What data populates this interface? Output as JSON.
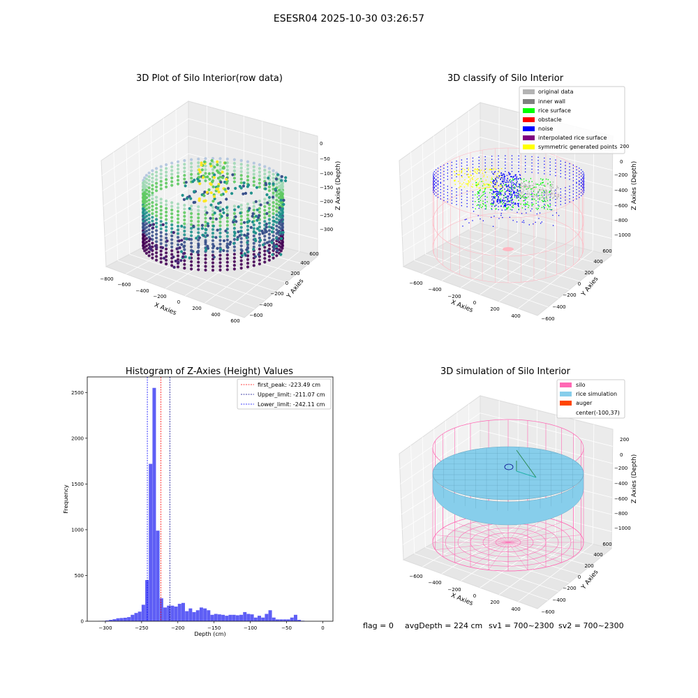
{
  "suptitle": "ESESR04 2025-10-30 03:26:57",
  "status_line": {
    "flag": "flag = 0",
    "avg_depth": "avgDepth = 224 cm",
    "sv1": "sv1 = 700~2300",
    "sv2": "sv2 = 700~2300"
  },
  "chart_data": [
    {
      "type": "scatter",
      "projection": "3d",
      "title": "3D Plot of Silo Interior(row data)",
      "xlabel": "X Axies",
      "ylabel": "Y Axies",
      "zlabel": "Z Axies (Depth)",
      "x_ticks": [
        "−800",
        "−600",
        "−400",
        "−200",
        "0",
        "200",
        "400",
        "600"
      ],
      "y_ticks": [
        "−600",
        "−400",
        "−200",
        "0",
        "200",
        "400",
        "600"
      ],
      "z_ticks": [
        "0",
        "−50",
        "−100",
        "−150",
        "−200",
        "−250",
        "−300"
      ],
      "colormap": "viridis",
      "zlim": [
        -330,
        10
      ],
      "grid": true
    },
    {
      "type": "scatter",
      "projection": "3d",
      "title": "3D classify of Silo Interior",
      "xlabel": "X Axies",
      "ylabel": "Y Axies",
      "zlabel": "Z Axies (Depth)",
      "x_ticks": [
        "−600",
        "−400",
        "−200",
        "0",
        "200",
        "400"
      ],
      "y_ticks": [
        "−600",
        "−400",
        "−200",
        "0",
        "200",
        "400",
        "600"
      ],
      "z_ticks": [
        "200",
        "0",
        "−200",
        "−400",
        "−600",
        "−800",
        "−1000"
      ],
      "legend_position": "top-right",
      "legend": [
        {
          "label": "original data",
          "color": "#b4b4b4"
        },
        {
          "label": "inner wall",
          "color": "#808080"
        },
        {
          "label": "rice surface",
          "color": "#00ff00"
        },
        {
          "label": "obstacle",
          "color": "#ff0000"
        },
        {
          "label": "noise",
          "color": "#0000ff"
        },
        {
          "label": "interpolated rice surface",
          "color": "#800080"
        },
        {
          "label": "symmetric generated points",
          "color": "#ffff00"
        }
      ],
      "grid": true
    },
    {
      "type": "bar",
      "title": "Histogram of Z-Axies (Height) Values",
      "xlabel": "Depth (cm)",
      "ylabel": "Frequency",
      "xlim": [
        -325,
        14
      ],
      "ylim": [
        0,
        2670
      ],
      "x_ticks": [
        -300,
        -250,
        -200,
        -150,
        -100,
        -50,
        0
      ],
      "y_ticks": [
        0,
        500,
        1000,
        1500,
        2000,
        2500
      ],
      "bar_color": "#5555f4",
      "bin_start": -310,
      "bin_width": 5,
      "values": [
        2,
        4,
        8,
        15,
        22,
        32,
        35,
        38,
        45,
        70,
        90,
        105,
        180,
        450,
        1720,
        2550,
        990,
        250,
        150,
        170,
        170,
        160,
        190,
        200,
        110,
        140,
        100,
        120,
        150,
        140,
        120,
        70,
        80,
        75,
        70,
        60,
        70,
        70,
        65,
        70,
        100,
        80,
        75,
        40,
        60,
        40,
        80,
        120,
        40,
        20,
        20,
        20,
        20,
        40,
        70,
        15,
        5
      ],
      "vlines": [
        {
          "label": "first_peak: -223.49 cm",
          "x": -223.49,
          "color": "#ff0000"
        },
        {
          "label": "Upper_limit: -211.07 cm",
          "x": -211.07,
          "color": "#00008b"
        },
        {
          "label": "Lower_limit: -242.11 cm",
          "x": -242.11,
          "color": "#0000ff"
        }
      ],
      "legend_position": "top-right",
      "grid": false
    },
    {
      "type": "surface",
      "projection": "3d",
      "title": "3D simulation of Silo Interior",
      "xlabel": "X Axies",
      "ylabel": "Y Axies",
      "zlabel": "Z Axies (Depth)",
      "x_ticks": [
        "−600",
        "−400",
        "−200",
        "0",
        "200",
        "400"
      ],
      "y_ticks": [
        "−600",
        "−400",
        "−200",
        "0",
        "200",
        "400",
        "600"
      ],
      "z_ticks": [
        "200",
        "0",
        "−200",
        "−400",
        "−600",
        "−800",
        "−1000"
      ],
      "legend_position": "top-right",
      "legend": [
        {
          "label": "silo",
          "color": "#ff69b4"
        },
        {
          "label": "rice simulation",
          "color": "#87ceeb"
        },
        {
          "label": "auger",
          "color": "#ff4500"
        },
        {
          "label": "center(-100,37)",
          "color": ""
        }
      ],
      "grid": true
    }
  ]
}
